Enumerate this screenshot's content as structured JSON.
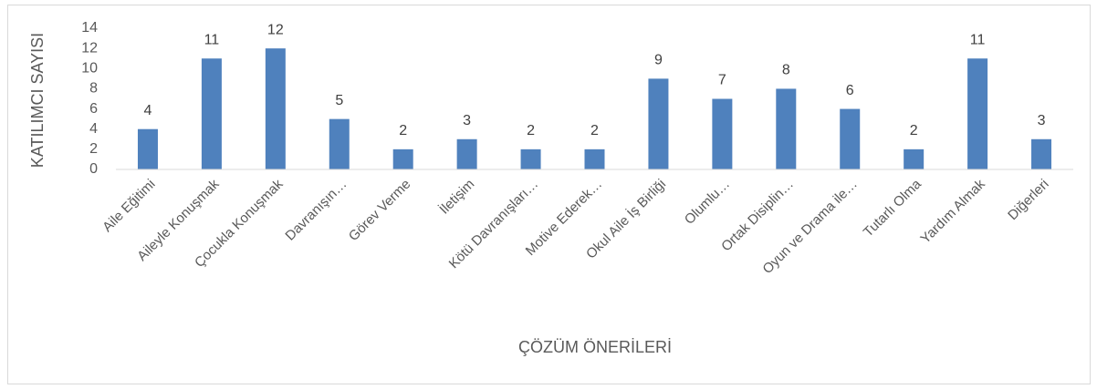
{
  "chart_data": {
    "type": "bar",
    "categories": [
      "Aile Eğitimi",
      "Aileyle Konuşmak",
      "Çocukla Konuşmak",
      "Davranışın…",
      "Görev Verme",
      "İletişim",
      "Kötü Davranışları…",
      "Motive Ederek…",
      "Okul Aile İş Birliği",
      "Olumlu…",
      "Ortak Disiplin…",
      "Oyun ve Drama  ile…",
      "Tutarlı Olma",
      "Yardım Almak",
      "Diğerleri"
    ],
    "values": [
      4,
      11,
      12,
      5,
      2,
      3,
      2,
      2,
      9,
      7,
      8,
      6,
      2,
      11,
      3
    ],
    "color": "#4f81bd",
    "xlabel": "ÇÖZÜM ÖNERİLERİ",
    "ylabel": "KATILIMCI SAYISI",
    "ylim": [
      0,
      14
    ],
    "yticks": [
      0,
      2,
      4,
      6,
      8,
      10,
      12,
      14
    ],
    "grid": false
  }
}
